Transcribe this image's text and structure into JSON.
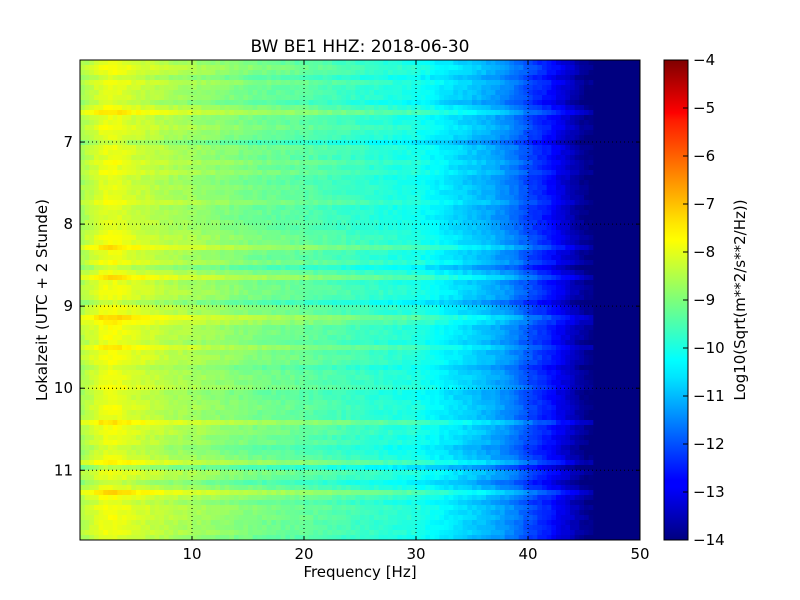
{
  "chart_data": {
    "type": "heatmap",
    "title": "BW BE1 HHZ: 2018-06-30",
    "xlabel": "Frequency [Hz]",
    "ylabel": "Lokalzeit (UTC + 2 Stunde)",
    "xlim": [
      0,
      50
    ],
    "ylim": [
      11.85,
      6.0
    ],
    "x_ticks": [
      10,
      20,
      30,
      40,
      50
    ],
    "x_tick_labels": [
      "10",
      "20",
      "30",
      "40",
      "50"
    ],
    "y_ticks": [
      7,
      8,
      9,
      10,
      11
    ],
    "y_tick_labels": [
      "7",
      "8",
      "9",
      "10",
      "11"
    ],
    "grid": true,
    "colormap": "jet",
    "colorbar": {
      "label": "Log10(Sqrt(m**2/s**2/Hz))",
      "range": [
        -14,
        -4
      ],
      "ticks": [
        -4,
        -5,
        -6,
        -7,
        -8,
        -9,
        -10,
        -11,
        -12,
        -13,
        -14
      ],
      "tick_labels": [
        "−4",
        "−5",
        "−6",
        "−7",
        "−8",
        "−9",
        "−10",
        "−11",
        "−12",
        "−13",
        "−14"
      ]
    },
    "spectral_profile": {
      "frequency_hz": [
        0,
        1,
        2,
        3,
        5,
        8,
        12,
        16,
        20,
        24,
        28,
        30,
        32,
        34,
        36,
        38,
        39,
        40,
        41,
        42,
        43,
        44,
        45,
        46,
        50
      ],
      "typical_level": [
        -8.6,
        -8.3,
        -8.0,
        -7.9,
        -8.2,
        -8.5,
        -8.8,
        -9.1,
        -9.3,
        -9.6,
        -9.9,
        -10.0,
        -10.3,
        -10.6,
        -10.9,
        -11.3,
        -11.6,
        -12.0,
        -12.3,
        -12.6,
        -13.0,
        -13.4,
        -13.8,
        -14.0,
        -14.0
      ]
    }
  }
}
